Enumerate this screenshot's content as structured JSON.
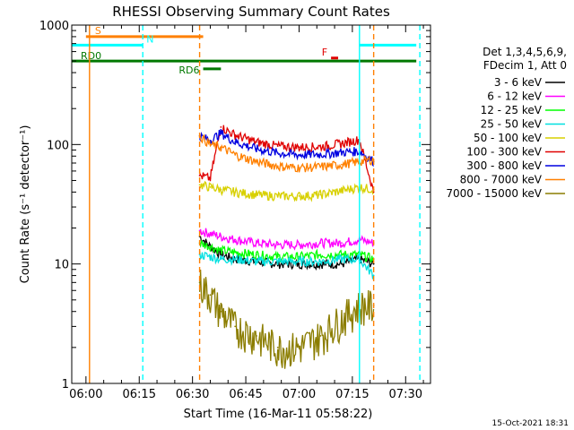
{
  "chart_data": {
    "type": "line",
    "title": "RHESSI Observing Summary Count Rates",
    "xlabel": "Start Time (16-Mar-11 05:58:22)",
    "ylabel": "Count Rate (s⁻¹ detector⁻¹)",
    "y_scale": "log",
    "xlim": [
      "05:56",
      "07:37"
    ],
    "ylim": [
      1,
      1000
    ],
    "x_ticks": [
      "06:00",
      "06:15",
      "06:30",
      "06:45",
      "07:00",
      "07:15",
      "07:30"
    ],
    "y_ticks": [
      "1",
      "10",
      "100",
      "1000"
    ],
    "legend_header": [
      "Det 1,3,4,5,6,9,",
      "FDecim 1, Att 0"
    ],
    "legend_position": "right",
    "timestamp": "15-Oct-2021 18:31",
    "series": [
      {
        "name": "3 - 6 keV",
        "color": "#000000",
        "x": [
          "06:32",
          "06:35",
          "06:38",
          "06:42",
          "06:48",
          "06:54",
          "07:00",
          "07:06",
          "07:12",
          "07:17",
          "07:21"
        ],
        "values": [
          17,
          14,
          12,
          11,
          10.5,
          10,
          10,
          10,
          10,
          11,
          10
        ]
      },
      {
        "name": "6 - 12 keV",
        "color": "#ff00ff",
        "x": [
          "06:32",
          "06:35",
          "06:38",
          "06:42",
          "06:48",
          "06:54",
          "07:00",
          "07:06",
          "07:12",
          "07:17",
          "07:21"
        ],
        "values": [
          19,
          18,
          17,
          16,
          15,
          14.5,
          14.5,
          15,
          15,
          16,
          15
        ]
      },
      {
        "name": "12 - 25 keV",
        "color": "#00ff00",
        "x": [
          "06:32",
          "06:35",
          "06:38",
          "06:42",
          "06:48",
          "06:54",
          "07:00",
          "07:06",
          "07:12",
          "07:17",
          "07:21"
        ],
        "values": [
          15,
          14,
          13,
          12.5,
          12,
          11.5,
          11.5,
          12,
          12,
          12,
          11
        ]
      },
      {
        "name": "25 - 50 keV",
        "color": "#00e0e0",
        "x": [
          "06:32",
          "06:35",
          "06:38",
          "06:42",
          "06:48",
          "06:54",
          "07:00",
          "07:06",
          "07:12",
          "07:17",
          "07:21"
        ],
        "values": [
          12,
          11.5,
          11,
          11,
          10.5,
          10.5,
          10.5,
          10.5,
          11,
          11,
          8
        ]
      },
      {
        "name": "50 - 100 keV",
        "color": "#d8d000",
        "x": [
          "06:32",
          "06:35",
          "06:38",
          "06:42",
          "06:48",
          "06:54",
          "07:00",
          "07:06",
          "07:12",
          "07:17",
          "07:21"
        ],
        "values": [
          46,
          44,
          42,
          40,
          38,
          37,
          37,
          38,
          41,
          44,
          42
        ]
      },
      {
        "name": "100 - 300 keV",
        "color": "#e00000",
        "x": [
          "06:32",
          "06:35",
          "06:38",
          "06:42",
          "06:48",
          "06:54",
          "07:00",
          "07:06",
          "07:12",
          "07:17",
          "07:21"
        ],
        "values": [
          55,
          52,
          140,
          120,
          105,
          97,
          95,
          96,
          102,
          110,
          40
        ]
      },
      {
        "name": "300 - 800 keV",
        "color": "#0000e0",
        "x": [
          "06:32",
          "06:35",
          "06:38",
          "06:42",
          "06:48",
          "06:54",
          "07:00",
          "07:06",
          "07:12",
          "07:17",
          "07:21"
        ],
        "values": [
          118,
          108,
          125,
          105,
          92,
          85,
          82,
          83,
          86,
          88,
          72
        ]
      },
      {
        "name": "800 - 7000 keV",
        "color": "#ff8000",
        "x": [
          "06:32",
          "06:35",
          "06:38",
          "06:42",
          "06:48",
          "06:54",
          "07:00",
          "07:06",
          "07:12",
          "07:17",
          "07:21"
        ],
        "values": [
          118,
          100,
          95,
          82,
          72,
          66,
          64,
          65,
          68,
          72,
          75
        ]
      },
      {
        "name": "7000 - 15000 keV",
        "color": "#8b7d00",
        "x": [
          "06:32",
          "06:35",
          "06:38",
          "06:42",
          "06:48",
          "06:54",
          "07:00",
          "07:06",
          "07:12",
          "07:17",
          "07:21"
        ],
        "values": [
          7,
          5.5,
          4,
          3,
          2.5,
          2,
          2,
          2.5,
          3.5,
          4.5,
          4.5
        ]
      }
    ],
    "flags": [
      {
        "label": "S",
        "color": "#ff8000",
        "y": 800,
        "start": "06:00",
        "end": "06:33"
      },
      {
        "label": "N",
        "color": "#00ffff",
        "y": 680,
        "start": "05:56",
        "end": "06:16"
      },
      {
        "label": "",
        "color": "#00ffff",
        "y": 680,
        "start": "07:17",
        "end": "07:33"
      },
      {
        "label": "RD0",
        "color": "#007800",
        "y": 500,
        "start": "05:56",
        "end": "07:33"
      },
      {
        "label": "RD6",
        "color": "#007800",
        "y": 430,
        "start": "06:33",
        "end": "06:38"
      },
      {
        "label": "F",
        "color": "#e00000",
        "y": 530,
        "start": "07:09",
        "end": "07:11"
      }
    ],
    "vertical_lines": [
      {
        "time": "06:01",
        "color": "#ff8000",
        "style": "solid"
      },
      {
        "time": "06:16",
        "color": "#00ffff",
        "style": "dashed"
      },
      {
        "time": "06:32",
        "color": "#ff8000",
        "style": "dashed"
      },
      {
        "time": "07:17",
        "color": "#00ffff",
        "style": "solid"
      },
      {
        "time": "07:21",
        "color": "#ff8000",
        "style": "dashed"
      },
      {
        "time": "07:34",
        "color": "#00ffff",
        "style": "dashed"
      }
    ]
  }
}
